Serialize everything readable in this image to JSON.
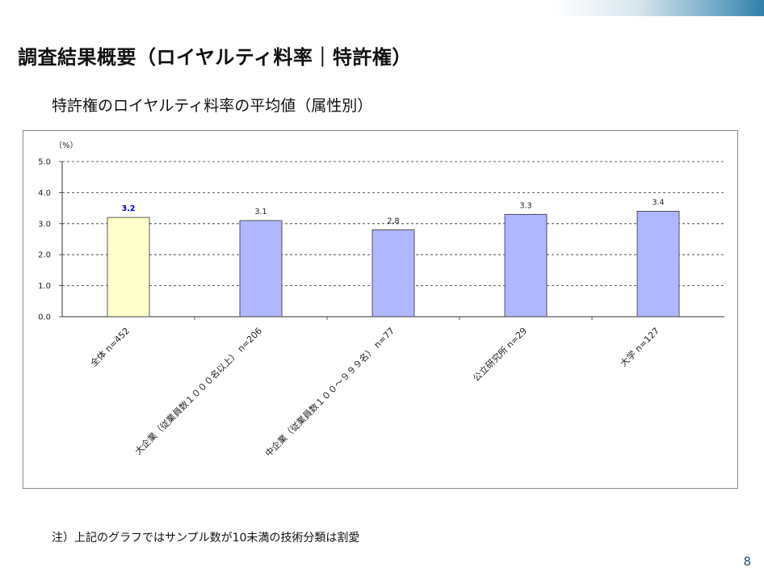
{
  "slide": {
    "title": "調査結果概要（ロイヤルティ料率｜特許権）",
    "note": "注）上記のグラフではサンプル数が10未満の技術分類は割愛",
    "page_number": "8"
  },
  "chart_data": {
    "type": "bar",
    "title": "特許権のロイヤルティ料率の平均値（属性別）",
    "unit_label": "（%）",
    "ylim": [
      0,
      5
    ],
    "y_ticks": [
      "0.0",
      "1.0",
      "2.0",
      "3.0",
      "4.0",
      "5.0"
    ],
    "grid": true,
    "categories": [
      "全体 n=452",
      "大企業（従業員数１０００名以上） n=206",
      "中企業（従業員数１００～９９９名） n=77",
      "公立研究所 n=29",
      "大学 n=127"
    ],
    "values": [
      3.2,
      3.1,
      2.8,
      3.3,
      3.4
    ],
    "data_labels": [
      "3.2",
      "3.1",
      "2.8",
      "3.3",
      "3.4"
    ],
    "colors": {
      "highlight_bar": "#ffffcc",
      "bar": "#b0b6ff",
      "bar_stroke": "#333333",
      "highlight_label": "#0000cc"
    }
  }
}
